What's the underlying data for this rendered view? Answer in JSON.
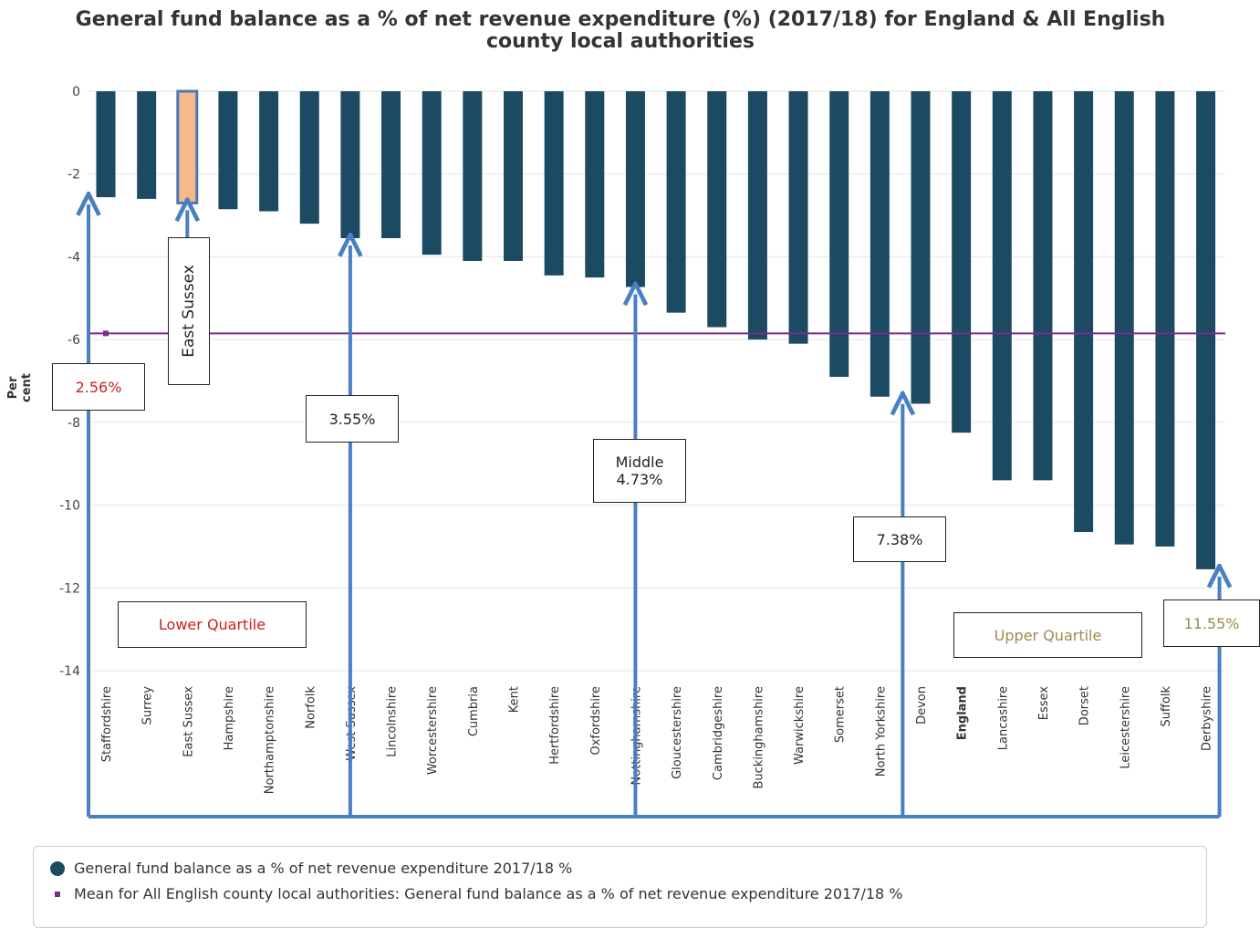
{
  "chart_data": {
    "type": "bar",
    "title_line1": "General fund balance as a % of net revenue expenditure (%) (2017/18) for England & All English",
    "title_line2": "county local authorities",
    "ylabel": "Per cent",
    "ylim": [
      -14,
      0
    ],
    "yticks": [
      0,
      -2,
      -4,
      -6,
      -8,
      -10,
      -12,
      -14
    ],
    "grid": true,
    "mean": -5.85,
    "categories": [
      "Staffordshire",
      "Surrey",
      "East Sussex",
      "Hampshire",
      "Northamptonshire",
      "Norfolk",
      "West Sussex",
      "Lincolnshire",
      "Worcestershire",
      "Cumbria",
      "Kent",
      "Hertfordshire",
      "Oxfordshire",
      "Nottinghamshire",
      "Gloucestershire",
      "Cambridgeshire",
      "Buckinghamshire",
      "Warwickshire",
      "Somerset",
      "North Yorkshire",
      "Devon",
      "England",
      "Lancashire",
      "Essex",
      "Dorset",
      "Leicestershire",
      "Suffolk",
      "Derbyshire"
    ],
    "values": [
      -2.56,
      -2.6,
      -2.7,
      -2.85,
      -2.9,
      -3.2,
      -3.55,
      -3.55,
      -3.95,
      -4.1,
      -4.1,
      -4.45,
      -4.5,
      -4.73,
      -5.35,
      -5.7,
      -6.0,
      -6.1,
      -6.9,
      -7.38,
      -7.55,
      -8.25,
      -9.4,
      -9.4,
      -10.65,
      -10.95,
      -11.0,
      -11.55
    ],
    "highlight": "East Sussex",
    "bold_category": "England",
    "colors": {
      "bar": "#1d4a63",
      "highlight": "#f7b98c",
      "highlight_border": "#4a78b8",
      "mean": "#7a2c8a",
      "arrow": "#4a7fc1",
      "grid": "#e6e6e6"
    },
    "legend": {
      "placement": "bottom",
      "items": [
        "General fund balance as a % of net revenue expenditure 2017/18 %",
        "Mean for All English county local authorities: General fund balance as a % of net revenue expenditure 2017/18 %"
      ]
    },
    "annotations": {
      "east_sussex": "East Sussex",
      "q1": "2.56%",
      "q2": "3.55%",
      "mid_label": "Middle",
      "mid_value": "4.73%",
      "q3": "7.38%",
      "q4": "11.55%",
      "lower": "Lower Quartile",
      "upper": "Upper Quartile"
    }
  }
}
